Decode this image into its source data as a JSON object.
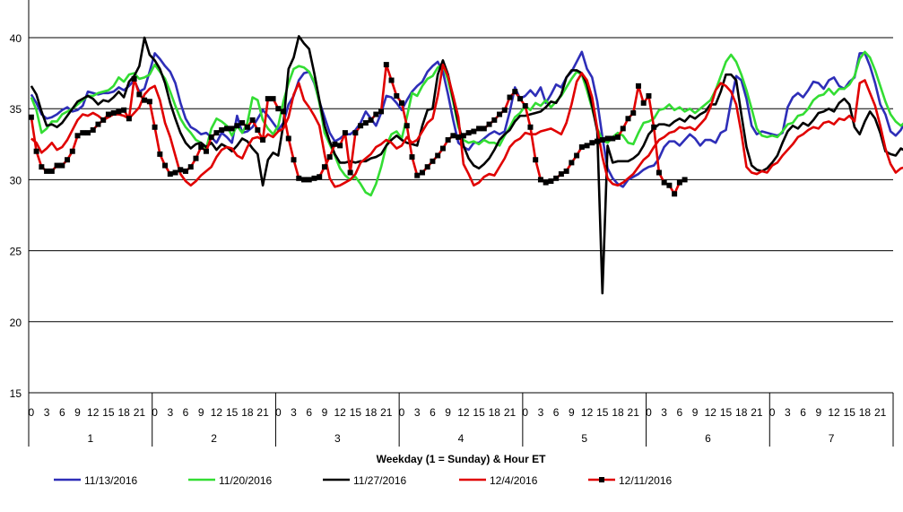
{
  "chart_data": {
    "type": "line",
    "title": "",
    "xlabel": "Weekday (1 = Sunday) & Hour ET",
    "ylabel": "",
    "ylim": [
      15,
      40
    ],
    "yticks": [
      15,
      20,
      25,
      30,
      35,
      40
    ],
    "y_gridlines": true,
    "legend_position": "bottom",
    "x_hour_ticks": [
      "0",
      "3",
      "6",
      "9",
      "12",
      "15",
      "18",
      "21"
    ],
    "x_day_labels": [
      "1",
      "2",
      "3",
      "4",
      "5",
      "6",
      "7"
    ],
    "hours_per_day": 24,
    "series": [
      {
        "name": "11/13/2016",
        "color": "#2E2EB8",
        "marker": "none",
        "values": [
          36.0,
          35.4,
          34.6,
          34.3,
          34.4,
          34.6,
          34.9,
          35.1,
          34.8,
          34.9,
          35.2,
          36.2,
          36.1,
          36.0,
          36.1,
          36.1,
          36.2,
          36.5,
          36.3,
          36.6,
          37.0,
          36.2,
          36.4,
          37.6,
          38.9,
          38.5,
          38.0,
          37.6,
          36.8,
          35.4,
          34.3,
          33.7,
          33.5,
          33.2,
          33.3,
          33.0,
          32.6,
          33.3,
          33.0,
          32.6,
          34.5,
          33.3,
          33.4,
          33.7,
          34.3,
          34.9,
          34.5,
          34.0,
          33.5,
          34.0,
          35.3,
          35.9,
          37.0,
          37.5,
          37.6,
          36.8,
          35.5,
          34.4,
          33.3,
          32.7,
          32.9,
          33.2,
          33.2,
          33.5,
          34.0,
          34.8,
          34.3,
          33.8,
          34.7,
          35.9,
          35.8,
          35.4,
          34.9,
          35.6,
          36.2,
          36.6,
          36.9,
          37.6,
          38.0,
          38.3,
          37.6,
          36.0,
          34.2,
          32.6,
          32.3,
          32.1,
          32.6,
          32.6,
          32.9,
          33.2,
          33.4,
          33.2,
          33.4,
          34.8,
          36.5,
          35.7,
          35.9,
          36.3,
          35.9,
          36.5,
          35.4,
          36.0,
          36.7,
          36.5,
          37.2,
          37.6,
          38.3,
          39.0,
          37.8,
          37.2,
          35.5,
          33.0,
          30.8,
          30.1,
          29.7,
          29.5,
          30.0,
          30.2,
          30.4,
          30.7,
          30.9,
          31.0,
          31.5,
          32.3,
          32.7,
          32.7,
          32.4,
          32.8,
          33.2,
          32.9,
          32.4,
          32.8,
          32.8,
          32.6,
          33.3,
          33.5,
          35.5,
          37.3,
          37.0,
          35.7,
          33.8,
          33.2,
          33.4,
          33.3,
          33.2,
          33.1,
          33.3,
          35.1,
          35.8,
          36.1,
          35.8,
          36.3,
          36.9,
          36.8,
          36.4,
          37.0,
          37.2,
          36.6,
          36.4,
          36.9,
          37.2,
          38.9,
          38.9,
          38.0,
          36.8,
          35.3,
          34.6,
          33.4,
          33.1,
          33.5,
          34.2,
          34.5,
          34.7,
          35.3,
          35.8,
          36.0,
          36.0,
          36.2,
          36.2,
          36.3,
          36.4,
          36.5,
          36.7,
          36.4,
          36.1,
          36.3,
          36.7,
          38.4,
          38.2,
          37.9,
          36.4
        ]
      },
      {
        "name": "11/20/2016",
        "color": "#33DD33",
        "marker": "none",
        "values": [
          35.8,
          34.9,
          33.3,
          33.6,
          34.1,
          34.1,
          34.6,
          34.8,
          35.0,
          35.3,
          35.6,
          35.9,
          35.9,
          36.1,
          36.2,
          36.3,
          36.6,
          37.2,
          36.9,
          37.4,
          37.5,
          37.1,
          37.2,
          37.4,
          38.1,
          37.6,
          37.1,
          36.2,
          35.2,
          34.3,
          33.7,
          33.3,
          32.8,
          32.6,
          32.2,
          33.6,
          34.3,
          34.1,
          33.8,
          33.1,
          33.8,
          33.3,
          34.0,
          35.8,
          35.6,
          34.2,
          33.6,
          33.2,
          33.8,
          35.5,
          36.8,
          37.8,
          38.0,
          37.9,
          37.6,
          36.9,
          35.4,
          33.3,
          32.5,
          31.7,
          30.8,
          30.3,
          30.0,
          30.2,
          29.7,
          29.1,
          28.9,
          29.7,
          30.9,
          32.4,
          33.2,
          33.4,
          32.9,
          34.4,
          36.1,
          35.9,
          36.6,
          37.1,
          37.3,
          37.9,
          38.1,
          37.0,
          35.5,
          33.7,
          32.8,
          32.6,
          32.7,
          32.5,
          32.8,
          32.6,
          32.6,
          32.4,
          33.1,
          33.7,
          34.4,
          34.7,
          35.2,
          34.9,
          35.4,
          35.2,
          35.6,
          35.1,
          35.5,
          35.9,
          36.5,
          37.1,
          37.6,
          37.4,
          36.3,
          35.0,
          33.6,
          32.8,
          32.6,
          33.0,
          33.3,
          33.1,
          32.6,
          32.5,
          33.3,
          34.0,
          34.1,
          34.3,
          34.9,
          35.0,
          35.3,
          34.9,
          35.1,
          34.8,
          35.0,
          34.7,
          35.0,
          35.3,
          35.6,
          36.3,
          37.3,
          38.3,
          38.8,
          38.3,
          37.4,
          36.3,
          35.0,
          33.6,
          33.1,
          33.0,
          33.1,
          33.0,
          33.4,
          33.9,
          34.0,
          34.5,
          34.6,
          35.0,
          35.6,
          35.9,
          36.0,
          36.4,
          36.0,
          36.4,
          36.4,
          36.7,
          37.3,
          38.5,
          39.0,
          38.6,
          37.7,
          36.6,
          35.5,
          34.6,
          34.1,
          33.8,
          34.1,
          34.4,
          34.5,
          34.9,
          35.4,
          35.8,
          36.1,
          36.2,
          36.3,
          36.1,
          36.3,
          36.4,
          36.2,
          36.6,
          36.4,
          36.3,
          37.3,
          39.0,
          39.1,
          38.8,
          37.0
        ]
      },
      {
        "name": "11/27/2016",
        "color": "#000000",
        "marker": "none",
        "values": [
          36.6,
          36.0,
          34.8,
          33.8,
          33.9,
          33.7,
          34.0,
          34.5,
          35.0,
          35.5,
          35.7,
          35.9,
          35.7,
          35.3,
          35.6,
          35.5,
          35.8,
          36.2,
          35.8,
          36.9,
          37.3,
          38.0,
          40.0,
          38.8,
          38.4,
          37.8,
          36.8,
          35.4,
          34.3,
          33.3,
          32.6,
          32.2,
          32.5,
          32.6,
          32.3,
          32.6,
          32.1,
          32.5,
          32.3,
          32.0,
          32.4,
          32.9,
          32.7,
          32.2,
          31.8,
          29.6,
          31.4,
          31.9,
          31.7,
          33.9,
          37.8,
          38.6,
          40.1,
          39.6,
          39.2,
          37.5,
          35.6,
          33.8,
          32.7,
          31.8,
          31.2,
          31.2,
          31.3,
          31.2,
          31.3,
          31.3,
          31.5,
          31.6,
          31.8,
          32.4,
          32.8,
          33.1,
          32.8,
          32.6,
          32.5,
          32.4,
          33.8,
          34.9,
          35.0,
          37.4,
          38.4,
          37.4,
          35.7,
          34.0,
          32.4,
          31.5,
          31.0,
          30.8,
          31.1,
          31.5,
          32.1,
          32.8,
          33.2,
          33.5,
          34.1,
          34.5,
          34.5,
          34.6,
          34.7,
          34.8,
          35.1,
          35.5,
          35.4,
          36.0,
          37.2,
          37.7,
          37.7,
          37.5,
          36.7,
          35.2,
          33.4,
          22.0,
          32.4,
          31.2,
          31.3,
          31.3,
          31.3,
          31.5,
          31.8,
          32.4,
          33.2,
          33.6,
          33.9,
          33.9,
          33.8,
          34.1,
          34.3,
          34.1,
          34.5,
          34.3,
          34.6,
          34.8,
          35.3,
          35.3,
          36.2,
          37.4,
          37.4,
          37.0,
          34.6,
          32.3,
          31.0,
          30.7,
          30.6,
          30.8,
          31.2,
          31.7,
          32.6,
          33.4,
          33.8,
          33.6,
          34.0,
          33.8,
          34.2,
          34.7,
          34.8,
          35.0,
          34.8,
          35.4,
          35.7,
          35.3,
          33.7,
          33.2,
          34.1,
          34.8,
          34.3,
          33.3,
          32.0,
          31.8,
          31.7,
          32.2,
          32.0,
          32.2,
          32.6,
          33.3,
          34.0,
          34.3,
          34.6,
          34.5,
          34.6,
          34.5,
          34.4,
          34.5,
          34.6,
          34.2,
          34.4,
          34.5,
          34.6,
          34.4,
          34.5,
          34.4,
          33.8
        ]
      },
      {
        "name": "12/4/2016",
        "color": "#E00000",
        "marker": "none",
        "values": [
          32.9,
          32.6,
          31.9,
          32.2,
          32.6,
          32.1,
          32.3,
          32.8,
          33.5,
          34.2,
          34.6,
          34.5,
          34.7,
          34.5,
          34.2,
          34.4,
          34.6,
          34.6,
          34.5,
          34.3,
          34.7,
          35.1,
          36.0,
          36.4,
          36.6,
          35.6,
          34.0,
          33.0,
          31.7,
          30.4,
          29.9,
          29.6,
          29.9,
          30.3,
          30.6,
          30.9,
          31.6,
          32.1,
          32.3,
          32.2,
          31.7,
          31.5,
          32.3,
          32.9,
          33.0,
          32.8,
          33.2,
          33.0,
          33.4,
          33.6,
          34.4,
          36.0,
          36.8,
          35.6,
          35.1,
          34.5,
          33.8,
          31.8,
          30.1,
          29.5,
          29.6,
          29.8,
          30.0,
          30.4,
          31.2,
          31.5,
          31.8,
          32.3,
          32.5,
          32.8,
          32.6,
          32.2,
          32.4,
          33.0,
          32.6,
          32.8,
          33.4,
          34.0,
          34.3,
          35.9,
          38.1,
          37.3,
          35.9,
          34.4,
          31.1,
          30.4,
          29.6,
          29.8,
          30.2,
          30.4,
          30.3,
          30.9,
          31.5,
          32.3,
          32.7,
          32.9,
          33.3,
          33.2,
          33.2,
          33.4,
          33.5,
          33.6,
          33.4,
          33.2,
          34.0,
          35.3,
          36.9,
          37.5,
          37.0,
          35.8,
          33.6,
          31.6,
          30.1,
          29.7,
          29.6,
          29.8,
          30.1,
          30.4,
          30.9,
          31.4,
          31.7,
          32.3,
          32.8,
          33.0,
          33.3,
          33.4,
          33.7,
          33.6,
          33.7,
          33.5,
          33.9,
          34.3,
          35.1,
          36.3,
          36.8,
          36.6,
          36.2,
          35.3,
          33.3,
          30.9,
          30.5,
          30.4,
          30.6,
          30.5,
          31.0,
          31.2,
          31.7,
          32.1,
          32.5,
          33.0,
          33.2,
          33.5,
          33.7,
          33.6,
          34.0,
          34.1,
          33.9,
          34.3,
          34.2,
          34.5,
          34.1,
          36.8,
          37.0,
          36.1,
          35.2,
          33.8,
          32.2,
          31.1,
          30.5,
          30.8,
          30.9,
          30.6,
          30.9,
          31.2,
          31.4,
          31.4,
          32.4,
          32.7,
          33.0,
          33.2,
          33.3,
          33.3,
          33.1,
          33.6,
          33.3,
          33.3,
          33.4,
          33.4,
          37.3,
          36.9,
          35.7,
          35.5,
          35.4
        ]
      },
      {
        "name": "12/11/2016",
        "color": "#E00000",
        "marker": "square",
        "values": [
          34.4,
          32.0,
          30.9,
          30.6,
          30.6,
          31.0,
          31.0,
          31.4,
          32.0,
          33.1,
          33.3,
          33.3,
          33.5,
          33.9,
          34.2,
          34.6,
          34.7,
          34.8,
          34.9,
          34.3,
          37.1,
          36.0,
          35.6,
          35.5,
          33.7,
          31.8,
          31.0,
          30.4,
          30.5,
          30.7,
          30.6,
          30.9,
          31.5,
          32.3,
          32.0,
          33.0,
          33.3,
          33.5,
          33.6,
          33.6,
          33.8,
          34.0,
          33.7,
          34.2,
          33.5,
          32.8,
          35.7,
          35.7,
          35.0,
          34.8,
          32.9,
          31.4,
          30.1,
          30.0,
          30.0,
          30.1,
          30.2,
          30.9,
          31.6,
          32.5,
          32.4,
          33.3,
          30.5,
          33.3,
          33.8,
          34.0,
          34.2,
          34.6,
          34.8,
          38.1,
          37.0,
          35.9,
          35.4,
          33.8,
          31.6,
          30.3,
          30.5,
          30.9,
          31.3,
          31.7,
          32.2,
          32.8,
          33.1,
          33.0,
          33.1,
          33.3,
          33.4,
          33.6,
          33.6,
          33.9,
          34.2,
          34.6,
          34.9,
          35.8,
          36.2,
          35.7,
          35.2,
          33.7,
          31.4,
          30.0,
          29.8,
          29.9,
          30.1,
          30.4,
          30.6,
          31.2,
          31.7,
          32.3,
          32.4,
          32.6,
          32.7,
          32.8,
          32.9,
          32.9,
          33.0,
          33.6,
          34.3,
          34.7,
          36.6,
          35.4,
          35.9,
          33.7,
          30.5,
          29.8,
          29.6,
          29.0,
          29.8,
          30.0
        ]
      }
    ]
  }
}
